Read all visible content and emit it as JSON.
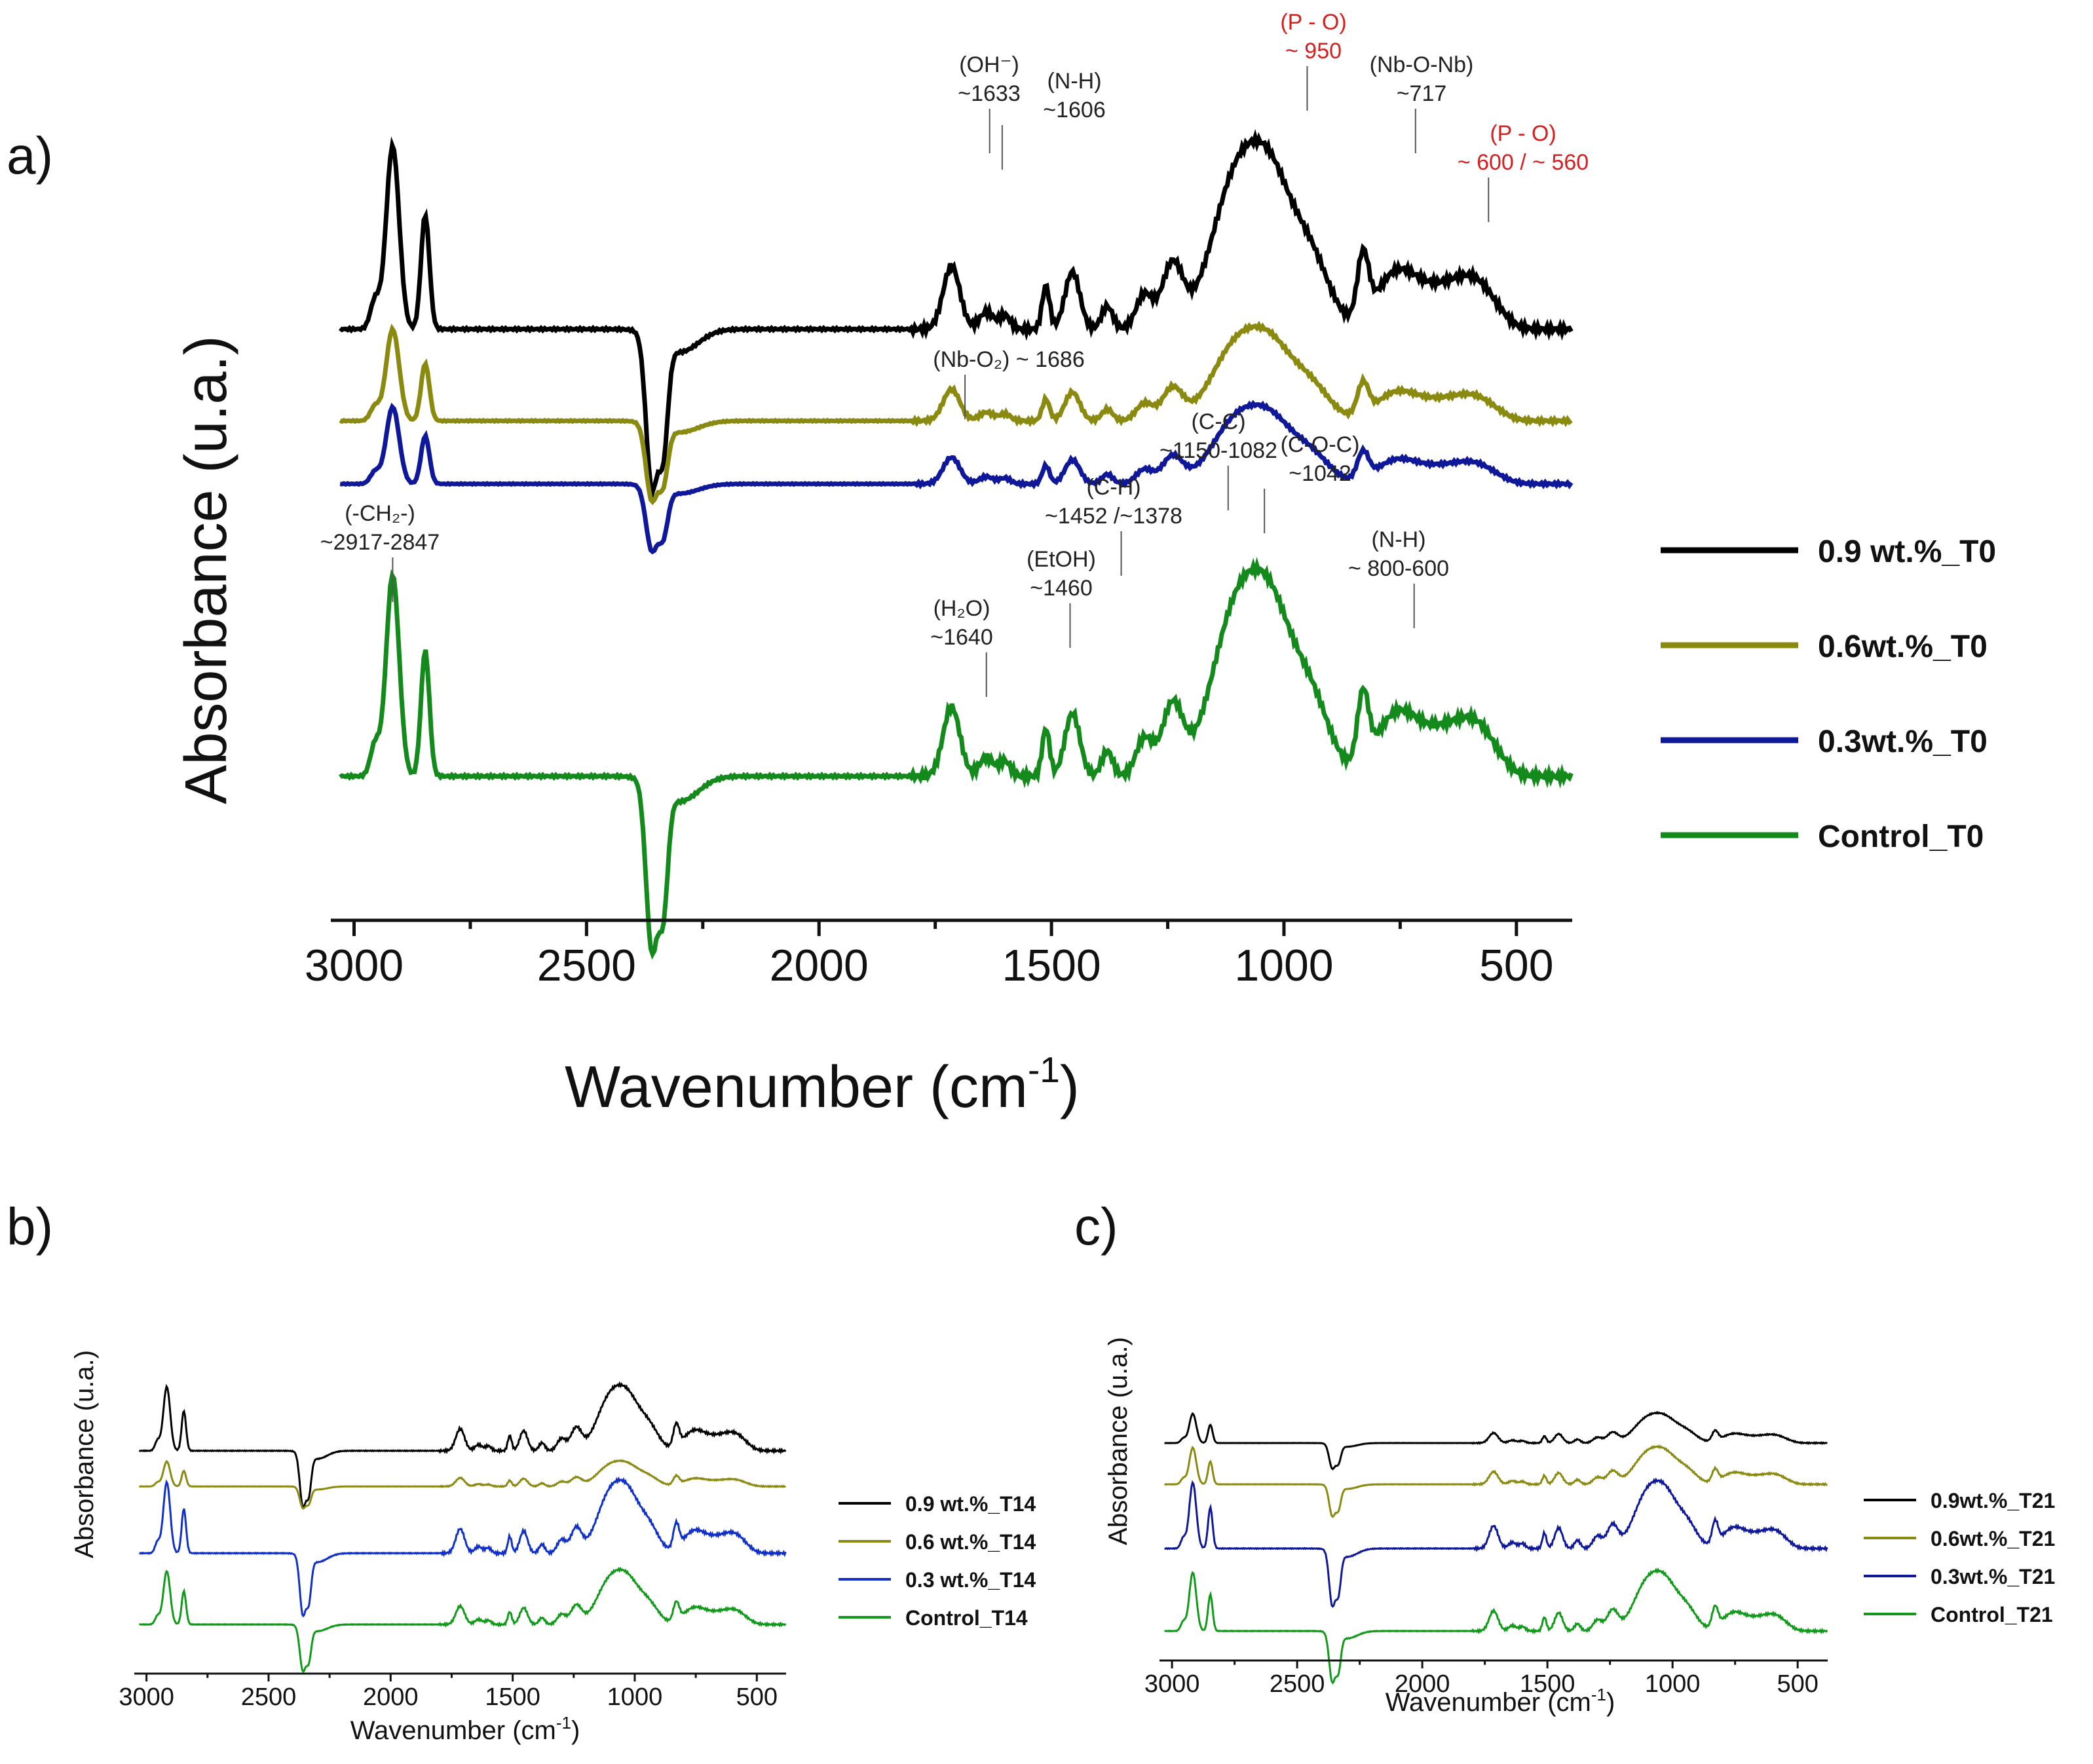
{
  "chart_data": [
    {
      "panel": "a)",
      "type": "line",
      "xlabel": "Wavenumber (cm",
      "xlabel_sup": "-1",
      "xlabel_end": ")",
      "ylabel": "Absorbance (u.a.)",
      "xlim": [
        3050,
        380
      ],
      "xticks": [
        3000,
        2500,
        2000,
        1500,
        1000,
        500
      ],
      "series": [
        {
          "name": "0.9 wt.%_T0",
          "color": "#000000",
          "offset": 3.9,
          "scale": 1.0,
          "variant": 1
        },
        {
          "name": "0.6wt.%_T0",
          "color": "#8a8a10",
          "offset": 3.1,
          "scale": 0.5,
          "variant": 2
        },
        {
          "name": "0.3wt.%_T0",
          "color": "#10189a",
          "offset": 2.55,
          "scale": 0.42,
          "variant": 3
        },
        {
          "name": "Control_T0",
          "color": "#138a1b",
          "offset": 0.0,
          "scale": 1.1,
          "variant": 4
        }
      ],
      "annotations": [
        {
          "lines": [
            "(OH⁻)",
            "~1633"
          ],
          "x": 1633,
          "red": false
        },
        {
          "lines": [
            "(N-H)",
            "~1606"
          ],
          "x": 1606,
          "red": false
        },
        {
          "lines": [
            "(P - O)",
            "~ 950"
          ],
          "x": 950,
          "red": true
        },
        {
          "lines": [
            "(Nb-O-Nb)",
            "~717"
          ],
          "x": 717,
          "red": false
        },
        {
          "lines": [
            "(P - O)",
            "~ 600 / ~ 560"
          ],
          "x": 560,
          "red": true
        },
        {
          "lines": [
            "(Nb-O₂) ~ 1686"
          ],
          "x": 1686,
          "red": false
        },
        {
          "lines": [
            "(-CH₂-)",
            "~2917-2847"
          ],
          "x": 2917,
          "red": false
        },
        {
          "lines": [
            "(C-C)",
            "~1150-1082"
          ],
          "x": 1120,
          "red": false
        },
        {
          "lines": [
            "(C-O-C)",
            "~1042"
          ],
          "x": 1042,
          "red": false
        },
        {
          "lines": [
            "(C-H)",
            "~1452 /~1378"
          ],
          "x": 1350,
          "red": false
        },
        {
          "lines": [
            "(EtOH)",
            "~1460"
          ],
          "x": 1460,
          "red": false
        },
        {
          "lines": [
            "(H₂O)",
            "~1640"
          ],
          "x": 1640,
          "red": false
        },
        {
          "lines": [
            "(N-H)",
            "~ 800-600"
          ],
          "x": 720,
          "red": false
        }
      ]
    },
    {
      "panel": "b)",
      "type": "line",
      "xlabel": "Wavenumber (cm",
      "xlabel_sup": "-1",
      "xlabel_end": ")",
      "ylabel": "Absorbance (u.a.)",
      "xlim": [
        3050,
        380
      ],
      "xticks": [
        3000,
        2500,
        2000,
        1500,
        1000,
        500
      ],
      "series": [
        {
          "name": "0.9 wt.%_T14",
          "color": "#000000",
          "offset": 3.9,
          "scale": 0.9,
          "variant": 1
        },
        {
          "name": "0.6 wt.%_T14",
          "color": "#8a8a10",
          "offset": 3.1,
          "scale": 0.35,
          "variant": 2
        },
        {
          "name": "0.3 wt.%_T14",
          "color": "#1030c8",
          "offset": 1.6,
          "scale": 1.0,
          "variant": 3
        },
        {
          "name": "Control_T14",
          "color": "#119a1a",
          "offset": 0.0,
          "scale": 0.75,
          "variant": 4
        }
      ]
    },
    {
      "panel": "c)",
      "type": "line",
      "xlabel": "Wavenumber (cm",
      "xlabel_sup": "-1",
      "xlabel_end": ")",
      "ylabel": "Absorbance (u.a.)",
      "xlim": [
        3050,
        380
      ],
      "xticks": [
        3000,
        2500,
        2000,
        1500,
        1000,
        500
      ],
      "series": [
        {
          "name": "0.9wt.%_T21",
          "color": "#000000",
          "offset": 4.1,
          "scale": 0.4,
          "variant": 1
        },
        {
          "name": "0.6wt.%_T21",
          "color": "#8a8a10",
          "offset": 3.2,
          "scale": 0.5,
          "variant": 2
        },
        {
          "name": "0.3wt.%_T21",
          "color": "#10189a",
          "offset": 1.8,
          "scale": 0.9,
          "variant": 3
        },
        {
          "name": "Control_T21",
          "color": "#119a1a",
          "offset": 0.0,
          "scale": 0.8,
          "variant": 4
        }
      ]
    }
  ]
}
